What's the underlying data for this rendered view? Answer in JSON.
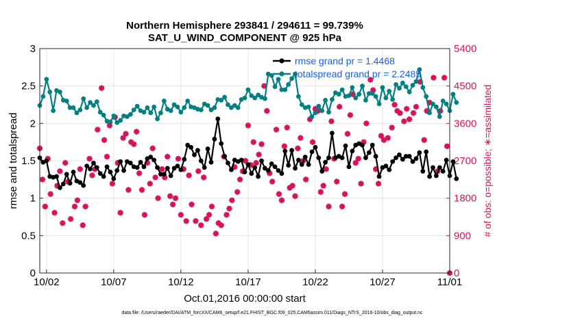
{
  "chart_data": {
    "type": "line",
    "title": "Northern Hemisphere 293841 / 294611 = 99.739%",
    "subtitle": "SAT_U_WIND_COMPONENT @ 925 hPa",
    "xlabel": "Oct.01,2016 00:00:00 start",
    "ylabel_left": "rmse and totalspread",
    "ylabel_right": "# of obs: o=possible; ∗=assimilated",
    "footer": "data file: /Users/raeder/DAI/ATM_forcXX/CAM6_setup/f.e21.FHIST_BGC.f09_025.CAM6assim.011/Diags_NTrS_2016-10/obs_diag_output.nc",
    "x_tick_labels": [
      "10/02",
      "10/07",
      "10/12",
      "10/17",
      "10/22",
      "10/27",
      "11/01"
    ],
    "x_tick_values": [
      2,
      7,
      12,
      17,
      22,
      27,
      32
    ],
    "xlim": [
      1.5,
      32
    ],
    "ylim_left": [
      0,
      3
    ],
    "y_ticks_left": [
      "0",
      "0.5",
      "1",
      "1.5",
      "2",
      "2.5",
      "3"
    ],
    "ylim_right": [
      0,
      5400
    ],
    "y_ticks_right": [
      "0",
      "900",
      "1800",
      "2700",
      "3600",
      "4500",
      "5400"
    ],
    "grid": true,
    "legend_placement": "top-right",
    "colors": {
      "rmse": "#000000",
      "spread": "#008080",
      "obs": "#d6135a",
      "legend_text": "#1560e6"
    },
    "x_start": 1.5,
    "x_step": 0.25,
    "series": [
      {
        "name": "rmse grand pr = 1.4468",
        "axis": "left",
        "values": [
          1.54,
          1.48,
          1.5,
          1.29,
          1.28,
          1.29,
          1.14,
          1.19,
          1.32,
          1.2,
          1.35,
          1.23,
          1.21,
          1.17,
          1.43,
          1.39,
          1.47,
          1.41,
          1.33,
          1.29,
          1.42,
          1.35,
          1.26,
          1.37,
          1.49,
          1.37,
          1.49,
          1.47,
          1.42,
          1.41,
          1.48,
          1.42,
          1.53,
          1.55,
          1.51,
          1.41,
          1.32,
          1.32,
          1.4,
          1.3,
          1.4,
          1.43,
          1.38,
          1.52,
          1.71,
          1.68,
          1.58,
          1.64,
          1.5,
          1.41,
          1.66,
          1.48,
          1.79,
          2.06,
          1.73,
          1.56,
          1.47,
          1.38,
          1.51,
          1.49,
          1.51,
          1.35,
          1.45,
          1.33,
          1.41,
          1.29,
          1.5,
          1.4,
          1.37,
          1.46,
          1.42,
          1.37,
          1.33,
          1.63,
          1.44,
          1.64,
          1.4,
          1.51,
          1.45,
          1.55,
          1.45,
          1.62,
          1.68,
          1.54,
          1.36,
          1.48,
          1.54,
          1.87,
          1.54,
          1.56,
          1.54,
          1.7,
          1.42,
          1.63,
          1.71,
          1.73,
          1.71,
          1.54,
          1.61,
          1.71,
          1.56,
          1.29,
          1.41,
          1.43,
          1.38,
          1.49,
          1.54,
          1.58,
          1.52,
          1.56,
          1.56,
          1.49,
          1.53,
          1.61,
          1.36,
          1.62,
          1.29,
          1.41,
          1.3,
          1.41,
          1.36,
          1.51,
          1.3,
          1.49,
          1.26
        ]
      },
      {
        "name": "totalspread grand pr = 2.2485",
        "axis": "left",
        "values": [
          2.24,
          2.36,
          2.59,
          2.42,
          2.17,
          2.44,
          2.42,
          2.31,
          2.3,
          2.21,
          2.21,
          2.14,
          2.18,
          2.33,
          2.21,
          2.28,
          2.24,
          2.29,
          2.15,
          2.11,
          2.03,
          2.02,
          2.1,
          2.01,
          2.04,
          2.1,
          2.09,
          2.12,
          2.18,
          2.23,
          2.17,
          2.15,
          2.21,
          2.14,
          2.22,
          2.06,
          2.14,
          2.3,
          2.19,
          2.17,
          2.25,
          2.22,
          2.15,
          2.21,
          2.3,
          2.22,
          2.21,
          2.19,
          2.18,
          2.26,
          2.24,
          2.18,
          2.21,
          2.32,
          2.31,
          2.35,
          2.25,
          2.21,
          2.24,
          2.21,
          2.32,
          2.34,
          2.45,
          2.37,
          2.34,
          2.38,
          2.35,
          2.33,
          2.66,
          2.64,
          2.49,
          2.59,
          2.45,
          2.45,
          2.52,
          2.6,
          2.66,
          2.36,
          2.25,
          2.21,
          2.22,
          2.09,
          2.14,
          2.23,
          2.17,
          2.31,
          2.15,
          2.32,
          2.41,
          2.39,
          2.45,
          2.36,
          2.37,
          2.48,
          2.34,
          2.39,
          2.5,
          2.31,
          2.4,
          2.4,
          2.36,
          2.26,
          2.48,
          2.34,
          2.43,
          2.32,
          2.52,
          2.47,
          2.54,
          2.49,
          2.42,
          2.51,
          2.56,
          2.72,
          2.48,
          2.36,
          2.14,
          2.26,
          2.22,
          2.09,
          2.3,
          2.26,
          2.17,
          2.39,
          2.28
        ]
      }
    ],
    "obs_possible": [
      [
        1.5,
        3000
      ],
      [
        1.7,
        2250
      ],
      [
        1.9,
        1600
      ],
      [
        2.1,
        2750
      ],
      [
        2.3,
        1900
      ],
      [
        2.6,
        1450
      ],
      [
        2.8,
        2100
      ],
      [
        3.0,
        2450
      ],
      [
        3.2,
        1200
      ],
      [
        3.4,
        2650
      ],
      [
        3.6,
        2200
      ],
      [
        3.8,
        1300
      ],
      [
        4.1,
        1600
      ],
      [
        4.3,
        1750
      ],
      [
        4.5,
        2500
      ],
      [
        4.7,
        1150
      ],
      [
        4.9,
        1600
      ],
      [
        5.2,
        2750
      ],
      [
        5.4,
        2350
      ],
      [
        5.6,
        2500
      ],
      [
        5.8,
        3450
      ],
      [
        6.1,
        4450
      ],
      [
        6.3,
        3200
      ],
      [
        6.5,
        2800
      ],
      [
        6.7,
        3550
      ],
      [
        6.9,
        2150
      ],
      [
        7.1,
        3750
      ],
      [
        7.3,
        2650
      ],
      [
        7.5,
        1450
      ],
      [
        7.7,
        3250
      ],
      [
        7.9,
        3350
      ],
      [
        8.1,
        2000
      ],
      [
        8.3,
        3150
      ],
      [
        8.5,
        3100
      ],
      [
        8.7,
        3400
      ],
      [
        8.9,
        2400
      ],
      [
        9.1,
        2000
      ],
      [
        9.3,
        1400
      ],
      [
        9.5,
        2650
      ],
      [
        9.7,
        2150
      ],
      [
        9.9,
        3000
      ],
      [
        10.1,
        2300
      ],
      [
        10.3,
        1800
      ],
      [
        10.6,
        2500
      ],
      [
        10.8,
        2300
      ],
      [
        11.0,
        2800
      ],
      [
        11.2,
        1850
      ],
      [
        11.4,
        1650
      ],
      [
        11.6,
        1800
      ],
      [
        11.8,
        2750
      ],
      [
        12.0,
        1400
      ],
      [
        12.2,
        2500
      ],
      [
        12.4,
        1250
      ],
      [
        12.6,
        2350
      ],
      [
        12.8,
        1650
      ],
      [
        13.1,
        1250
      ],
      [
        13.3,
        2450
      ],
      [
        13.5,
        1150
      ],
      [
        13.7,
        2300
      ],
      [
        13.9,
        1300
      ],
      [
        14.1,
        1400
      ],
      [
        14.3,
        1600
      ],
      [
        14.6,
        950
      ],
      [
        14.8,
        1200
      ],
      [
        15.0,
        1150
      ],
      [
        15.2,
        2800
      ],
      [
        15.4,
        1400
      ],
      [
        15.6,
        1550
      ],
      [
        15.8,
        1750
      ],
      [
        16.0,
        2550
      ],
      [
        16.2,
        1950
      ],
      [
        16.4,
        2250
      ],
      [
        16.6,
        2450
      ],
      [
        16.8,
        2700
      ],
      [
        17.0,
        3550
      ],
      [
        17.2,
        2600
      ],
      [
        17.4,
        3150
      ],
      [
        17.6,
        2650
      ],
      [
        17.8,
        2850
      ],
      [
        18.0,
        3100
      ],
      [
        18.2,
        4500
      ],
      [
        18.4,
        3900
      ],
      [
        18.6,
        2400
      ],
      [
        18.8,
        2200
      ],
      [
        19.1,
        3450
      ],
      [
        19.3,
        1900
      ],
      [
        19.5,
        1750
      ],
      [
        19.7,
        3050
      ],
      [
        19.9,
        3500
      ],
      [
        20.1,
        2050
      ],
      [
        20.3,
        2100
      ],
      [
        20.5,
        1850
      ],
      [
        20.7,
        3000
      ],
      [
        20.9,
        3250
      ],
      [
        21.1,
        2700
      ],
      [
        21.3,
        2250
      ],
      [
        21.6,
        3700
      ],
      [
        21.8,
        3150
      ],
      [
        22.0,
        3950
      ],
      [
        22.2,
        3900
      ],
      [
        22.4,
        1950
      ],
      [
        22.6,
        2100
      ],
      [
        22.8,
        2500
      ],
      [
        23.0,
        1600
      ],
      [
        23.2,
        3650
      ],
      [
        23.4,
        2750
      ],
      [
        23.6,
        2200
      ],
      [
        23.8,
        4000
      ],
      [
        24.0,
        1600
      ],
      [
        24.2,
        1900
      ],
      [
        24.4,
        3350
      ],
      [
        24.6,
        3800
      ],
      [
        24.8,
        4300
      ],
      [
        25.0,
        2650
      ],
      [
        25.2,
        2750
      ],
      [
        25.4,
        2150
      ],
      [
        25.6,
        3150
      ],
      [
        25.8,
        3600
      ],
      [
        26.1,
        4650
      ],
      [
        26.3,
        4400
      ],
      [
        26.5,
        2500
      ],
      [
        26.7,
        2150
      ],
      [
        26.9,
        3300
      ],
      [
        27.1,
        3200
      ],
      [
        27.4,
        3250
      ],
      [
        27.7,
        3500
      ],
      [
        27.9,
        4050
      ],
      [
        28.1,
        3900
      ],
      [
        28.3,
        3850
      ],
      [
        28.6,
        3650
      ],
      [
        28.8,
        3950
      ],
      [
        29.0,
        3700
      ],
      [
        29.3,
        3850
      ],
      [
        29.5,
        4000
      ],
      [
        29.8,
        4600
      ],
      [
        30.1,
        3200
      ],
      [
        30.3,
        3900
      ],
      [
        30.5,
        4100
      ],
      [
        30.8,
        4700
      ],
      [
        31.1,
        2450
      ],
      [
        31.3,
        3900
      ],
      [
        31.6,
        4700
      ],
      [
        31.8,
        3050
      ],
      [
        32.0,
        0
      ]
    ]
  }
}
